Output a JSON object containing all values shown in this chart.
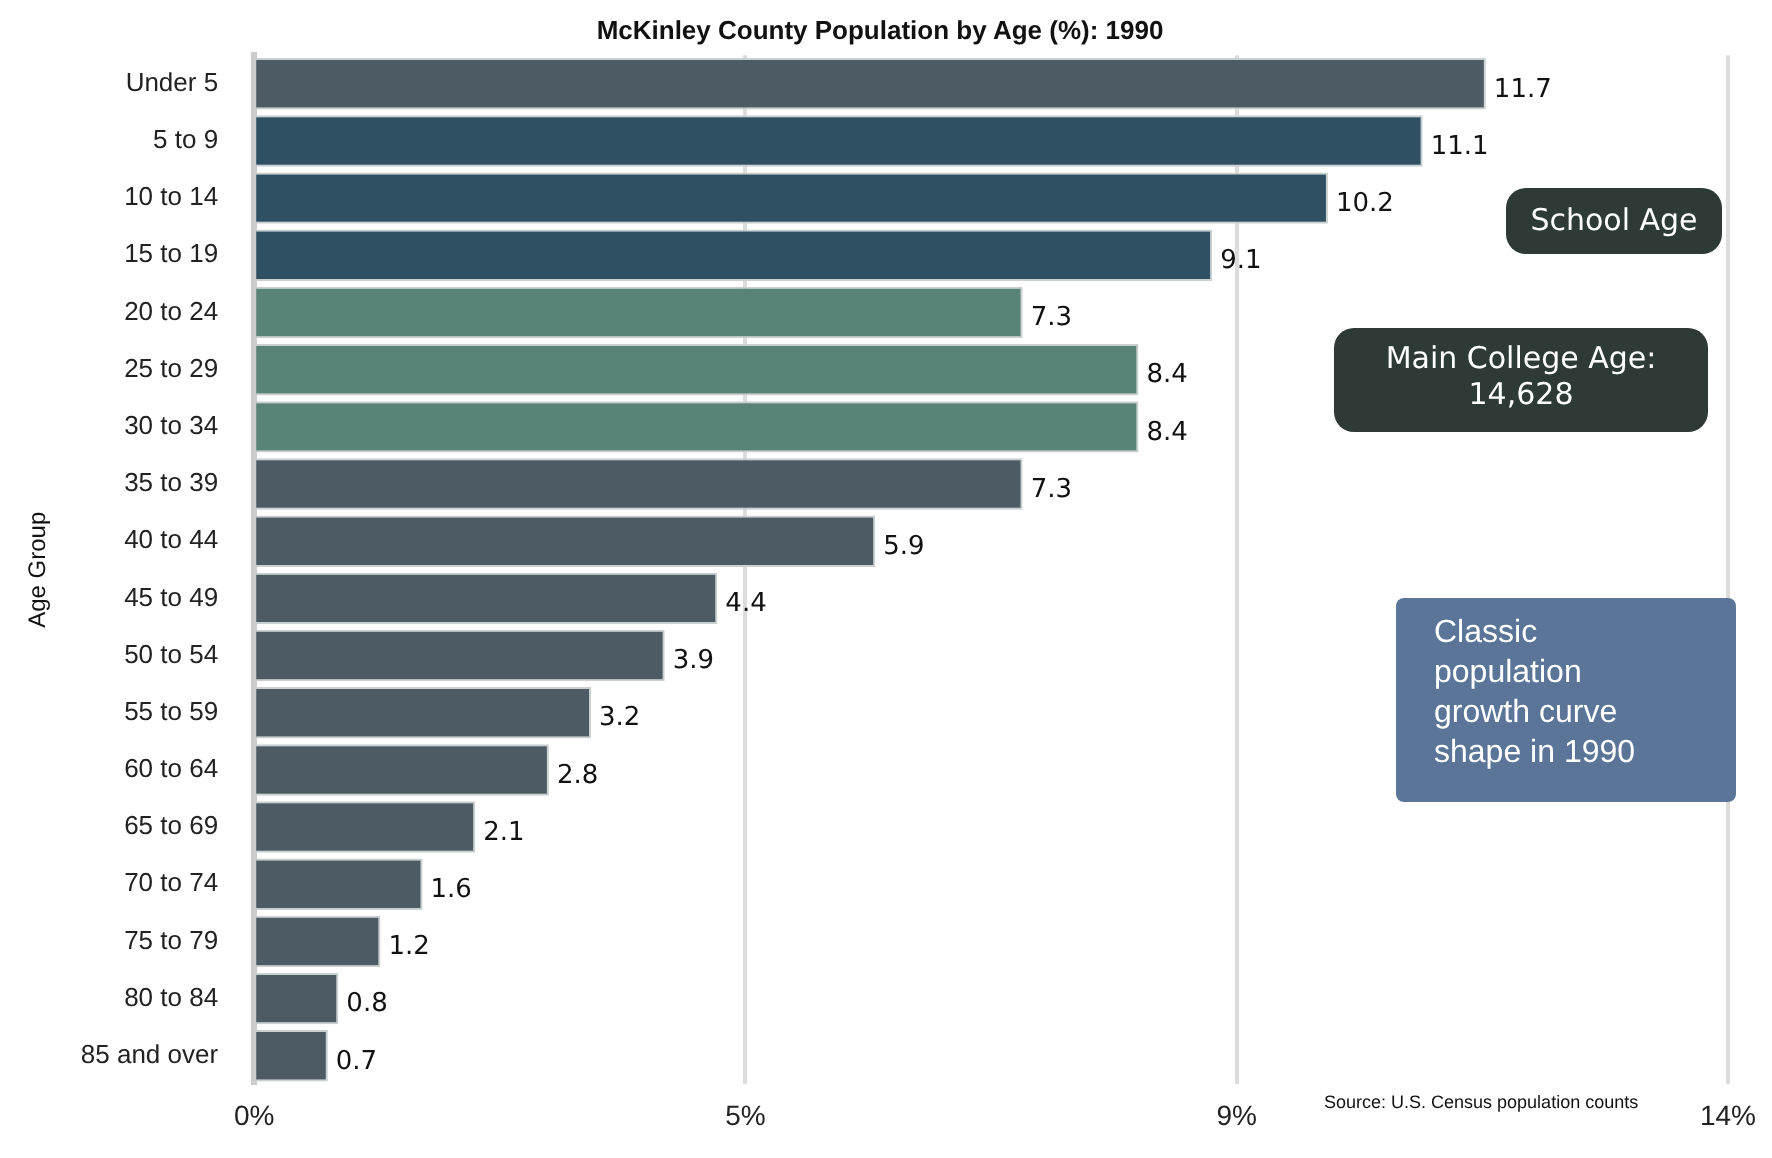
{
  "chart_data": {
    "type": "bar",
    "orientation": "horizontal",
    "title": "McKinley County Population by Age (%): 1990",
    "ylabel": "Age Group",
    "categories": [
      "Under 5",
      "5 to 9",
      "10 to 14",
      "15 to 19",
      "20 to 24",
      "25 to 29",
      "30 to 34",
      "35 to 39",
      "40 to 44",
      "45 to 49",
      "50 to 54",
      "55 to 59",
      "60 to 64",
      "65 to 69",
      "70 to 74",
      "75 to 79",
      "80 to 84",
      "85 and over"
    ],
    "values": [
      11.7,
      11.1,
      10.2,
      9.1,
      7.3,
      8.4,
      8.4,
      7.3,
      5.9,
      4.4,
      3.9,
      3.2,
      2.8,
      2.1,
      1.6,
      1.2,
      0.8,
      0.7
    ],
    "colors": [
      "#4d5c64",
      "#2f4f63",
      "#2f4f63",
      "#2f4f63",
      "#5a8378",
      "#5a8378",
      "#5a8378",
      "#4d5c64",
      "#4d5c64",
      "#4d5c64",
      "#4d5c64",
      "#4d5c64",
      "#4d5c64",
      "#4d5c64",
      "#4d5c64",
      "#4d5c64",
      "#4d5c64",
      "#4d5c64"
    ],
    "xlim": [
      0,
      14
    ],
    "xticks": [
      {
        "value": 0,
        "label": "0%"
      },
      {
        "value": 4.667,
        "label": "5%"
      },
      {
        "value": 9.333,
        "label": "9%"
      },
      {
        "value": 14,
        "label": "14%"
      }
    ],
    "grid": "x",
    "data_labels": true,
    "legend": false,
    "annotations": [
      "School Age",
      "Main College Age: 14,628",
      "Classic population growth curve shape in 1990",
      "Source: U.S. Census population counts"
    ]
  }
}
